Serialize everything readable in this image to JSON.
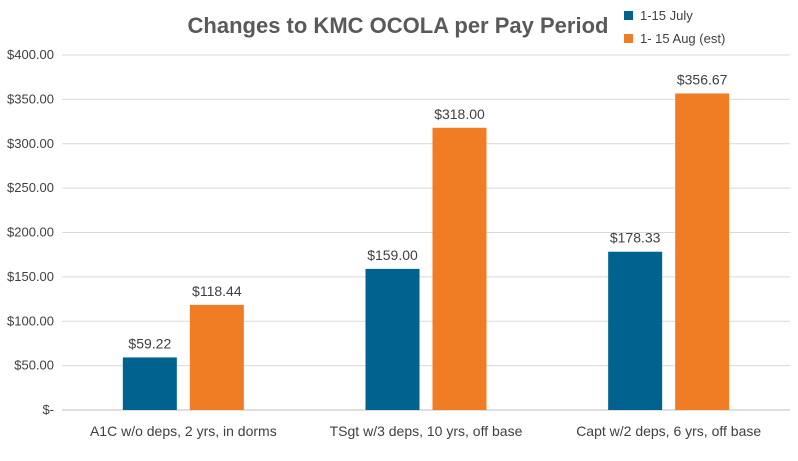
{
  "chart_data": {
    "type": "bar",
    "title": "Changes to KMC OCOLA per Pay Period",
    "categories": [
      "A1C w/o deps, 2 yrs, in dorms",
      "TSgt w/3 deps, 10 yrs, off base",
      "Capt w/2 deps, 6 yrs, off base"
    ],
    "series": [
      {
        "name": "1-15 July",
        "color": "#00628f",
        "values": [
          59.22,
          159.0,
          178.33
        ],
        "labels": [
          "$59.22",
          "$159.00",
          "$178.33"
        ]
      },
      {
        "name": "1- 15 Aug (est)",
        "color": "#f07c24",
        "values": [
          118.44,
          318.0,
          356.67
        ],
        "labels": [
          "$118.44",
          "$318.00",
          "$356.67"
        ]
      }
    ],
    "ylim": [
      0,
      400
    ],
    "yticks": [
      0,
      50,
      100,
      150,
      200,
      250,
      300,
      350,
      400
    ],
    "ytick_labels": [
      "$-",
      "$50.00",
      "$100.00",
      "$150.00",
      "$200.00",
      "$250.00",
      "$300.00",
      "$350.00",
      "$400.00"
    ],
    "xlabel": "",
    "ylabel": "",
    "grid": true,
    "legend_position": "top-right"
  }
}
